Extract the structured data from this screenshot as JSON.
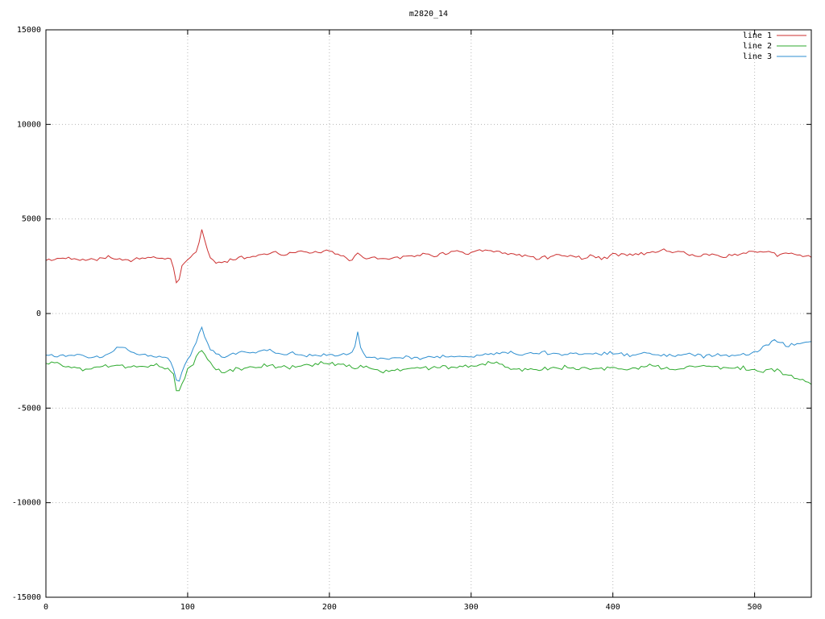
{
  "chart_data": {
    "type": "line",
    "title": "m2820_14",
    "xlabel": "",
    "ylabel": "",
    "xlim": [
      0,
      540
    ],
    "ylim": [
      -15000,
      15000
    ],
    "xticks": [
      0,
      100,
      200,
      300,
      400,
      500
    ],
    "yticks": [
      -15000,
      -10000,
      -5000,
      0,
      5000,
      10000,
      15000
    ],
    "grid": "dotted",
    "grid_color": "#b8b8b8",
    "axis_color": "#000000",
    "legend_position": "top-right",
    "noise_seed": 42,
    "sample_step": 2,
    "series": [
      {
        "name": "line 1",
        "color": "#cc2f2f",
        "noise_amplitude": 120,
        "keypoints": [
          [
            0,
            2800
          ],
          [
            15,
            2950
          ],
          [
            30,
            2850
          ],
          [
            45,
            3000
          ],
          [
            55,
            2800
          ],
          [
            65,
            2900
          ],
          [
            75,
            2950
          ],
          [
            85,
            2900
          ],
          [
            89,
            2750
          ],
          [
            91,
            2100
          ],
          [
            93,
            1300
          ],
          [
            95,
            2300
          ],
          [
            98,
            2750
          ],
          [
            103,
            3000
          ],
          [
            107,
            3400
          ],
          [
            110,
            4500
          ],
          [
            113,
            3500
          ],
          [
            116,
            3000
          ],
          [
            119,
            2700
          ],
          [
            123,
            2650
          ],
          [
            128,
            2800
          ],
          [
            135,
            2950
          ],
          [
            145,
            3000
          ],
          [
            155,
            3150
          ],
          [
            162,
            3300
          ],
          [
            168,
            3100
          ],
          [
            175,
            3200
          ],
          [
            182,
            3300
          ],
          [
            188,
            3150
          ],
          [
            194,
            3300
          ],
          [
            200,
            3250
          ],
          [
            208,
            3050
          ],
          [
            214,
            2850
          ],
          [
            220,
            3100
          ],
          [
            228,
            2950
          ],
          [
            235,
            2900
          ],
          [
            245,
            2950
          ],
          [
            255,
            3050
          ],
          [
            265,
            3100
          ],
          [
            275,
            3100
          ],
          [
            283,
            3200
          ],
          [
            290,
            3300
          ],
          [
            296,
            3100
          ],
          [
            302,
            3250
          ],
          [
            308,
            3300
          ],
          [
            315,
            3300
          ],
          [
            322,
            3200
          ],
          [
            330,
            3100
          ],
          [
            338,
            3050
          ],
          [
            346,
            2950
          ],
          [
            355,
            3000
          ],
          [
            363,
            3100
          ],
          [
            370,
            3050
          ],
          [
            377,
            2950
          ],
          [
            385,
            3050
          ],
          [
            392,
            2900
          ],
          [
            400,
            3100
          ],
          [
            408,
            3150
          ],
          [
            415,
            3100
          ],
          [
            423,
            3200
          ],
          [
            430,
            3250
          ],
          [
            436,
            3400
          ],
          [
            442,
            3200
          ],
          [
            448,
            3300
          ],
          [
            455,
            3100
          ],
          [
            463,
            3050
          ],
          [
            470,
            3150
          ],
          [
            478,
            3000
          ],
          [
            486,
            3100
          ],
          [
            494,
            3200
          ],
          [
            501,
            3300
          ],
          [
            508,
            3200
          ],
          [
            515,
            3100
          ],
          [
            523,
            3150
          ],
          [
            531,
            3150
          ],
          [
            540,
            2950
          ]
        ]
      },
      {
        "name": "line 2",
        "color": "#2eaa2e",
        "noise_amplitude": 130,
        "keypoints": [
          [
            0,
            -2600
          ],
          [
            8,
            -2700
          ],
          [
            18,
            -2850
          ],
          [
            28,
            -2950
          ],
          [
            38,
            -2800
          ],
          [
            48,
            -2700
          ],
          [
            58,
            -2850
          ],
          [
            68,
            -2800
          ],
          [
            78,
            -2750
          ],
          [
            86,
            -2850
          ],
          [
            90,
            -3300
          ],
          [
            93,
            -4400
          ],
          [
            96,
            -3700
          ],
          [
            100,
            -3000
          ],
          [
            104,
            -2600
          ],
          [
            108,
            -2150
          ],
          [
            110,
            -1900
          ],
          [
            113,
            -2300
          ],
          [
            116,
            -2650
          ],
          [
            120,
            -2950
          ],
          [
            125,
            -3050
          ],
          [
            132,
            -2950
          ],
          [
            140,
            -2900
          ],
          [
            148,
            -2850
          ],
          [
            156,
            -2750
          ],
          [
            164,
            -2800
          ],
          [
            172,
            -2850
          ],
          [
            180,
            -2800
          ],
          [
            188,
            -2700
          ],
          [
            194,
            -2550
          ],
          [
            200,
            -2700
          ],
          [
            206,
            -2600
          ],
          [
            212,
            -2750
          ],
          [
            218,
            -2900
          ],
          [
            224,
            -2750
          ],
          [
            230,
            -2950
          ],
          [
            238,
            -3050
          ],
          [
            246,
            -3000
          ],
          [
            254,
            -2950
          ],
          [
            262,
            -2900
          ],
          [
            270,
            -2850
          ],
          [
            278,
            -2800
          ],
          [
            286,
            -2850
          ],
          [
            294,
            -2800
          ],
          [
            302,
            -2750
          ],
          [
            310,
            -2650
          ],
          [
            316,
            -2600
          ],
          [
            322,
            -2750
          ],
          [
            330,
            -2900
          ],
          [
            338,
            -3000
          ],
          [
            346,
            -2950
          ],
          [
            354,
            -2900
          ],
          [
            362,
            -2850
          ],
          [
            370,
            -2850
          ],
          [
            378,
            -2900
          ],
          [
            386,
            -2950
          ],
          [
            394,
            -2900
          ],
          [
            402,
            -2900
          ],
          [
            410,
            -2950
          ],
          [
            418,
            -2850
          ],
          [
            426,
            -2750
          ],
          [
            434,
            -2850
          ],
          [
            442,
            -2950
          ],
          [
            450,
            -2900
          ],
          [
            458,
            -2800
          ],
          [
            466,
            -2750
          ],
          [
            474,
            -2850
          ],
          [
            482,
            -2900
          ],
          [
            490,
            -2850
          ],
          [
            498,
            -2950
          ],
          [
            506,
            -3050
          ],
          [
            512,
            -2900
          ],
          [
            518,
            -3100
          ],
          [
            524,
            -3250
          ],
          [
            530,
            -3450
          ],
          [
            535,
            -3550
          ],
          [
            540,
            -3700
          ]
        ]
      },
      {
        "name": "line 3",
        "color": "#2e8fd0",
        "noise_amplitude": 110,
        "keypoints": [
          [
            0,
            -2150
          ],
          [
            10,
            -2250
          ],
          [
            20,
            -2200
          ],
          [
            30,
            -2300
          ],
          [
            40,
            -2250
          ],
          [
            46,
            -2050
          ],
          [
            51,
            -1800
          ],
          [
            56,
            -1900
          ],
          [
            62,
            -2100
          ],
          [
            70,
            -2200
          ],
          [
            80,
            -2250
          ],
          [
            86,
            -2300
          ],
          [
            90,
            -2900
          ],
          [
            93,
            -3800
          ],
          [
            96,
            -3100
          ],
          [
            100,
            -2400
          ],
          [
            104,
            -1900
          ],
          [
            107,
            -1300
          ],
          [
            110,
            -700
          ],
          [
            113,
            -1500
          ],
          [
            116,
            -1900
          ],
          [
            120,
            -2100
          ],
          [
            126,
            -2250
          ],
          [
            132,
            -2150
          ],
          [
            138,
            -2000
          ],
          [
            144,
            -2100
          ],
          [
            150,
            -2000
          ],
          [
            156,
            -1900
          ],
          [
            162,
            -2050
          ],
          [
            168,
            -2150
          ],
          [
            174,
            -2100
          ],
          [
            180,
            -2200
          ],
          [
            186,
            -2250
          ],
          [
            192,
            -2200
          ],
          [
            198,
            -2150
          ],
          [
            204,
            -2250
          ],
          [
            210,
            -2200
          ],
          [
            215,
            -2100
          ],
          [
            218,
            -1750
          ],
          [
            220,
            -900
          ],
          [
            222,
            -1800
          ],
          [
            225,
            -2300
          ],
          [
            232,
            -2350
          ],
          [
            240,
            -2400
          ],
          [
            248,
            -2350
          ],
          [
            256,
            -2300
          ],
          [
            264,
            -2350
          ],
          [
            272,
            -2300
          ],
          [
            280,
            -2300
          ],
          [
            288,
            -2250
          ],
          [
            296,
            -2300
          ],
          [
            304,
            -2250
          ],
          [
            312,
            -2150
          ],
          [
            320,
            -2100
          ],
          [
            328,
            -2050
          ],
          [
            336,
            -2150
          ],
          [
            344,
            -2100
          ],
          [
            352,
            -2050
          ],
          [
            360,
            -2100
          ],
          [
            368,
            -2150
          ],
          [
            376,
            -2100
          ],
          [
            384,
            -2150
          ],
          [
            392,
            -2100
          ],
          [
            400,
            -2100
          ],
          [
            408,
            -2150
          ],
          [
            416,
            -2200
          ],
          [
            424,
            -2100
          ],
          [
            432,
            -2200
          ],
          [
            440,
            -2250
          ],
          [
            448,
            -2200
          ],
          [
            456,
            -2150
          ],
          [
            464,
            -2250
          ],
          [
            472,
            -2200
          ],
          [
            480,
            -2250
          ],
          [
            488,
            -2200
          ],
          [
            496,
            -2100
          ],
          [
            503,
            -1950
          ],
          [
            509,
            -1650
          ],
          [
            514,
            -1450
          ],
          [
            519,
            -1550
          ],
          [
            524,
            -1700
          ],
          [
            529,
            -1650
          ],
          [
            534,
            -1550
          ],
          [
            540,
            -1450
          ]
        ]
      }
    ]
  }
}
